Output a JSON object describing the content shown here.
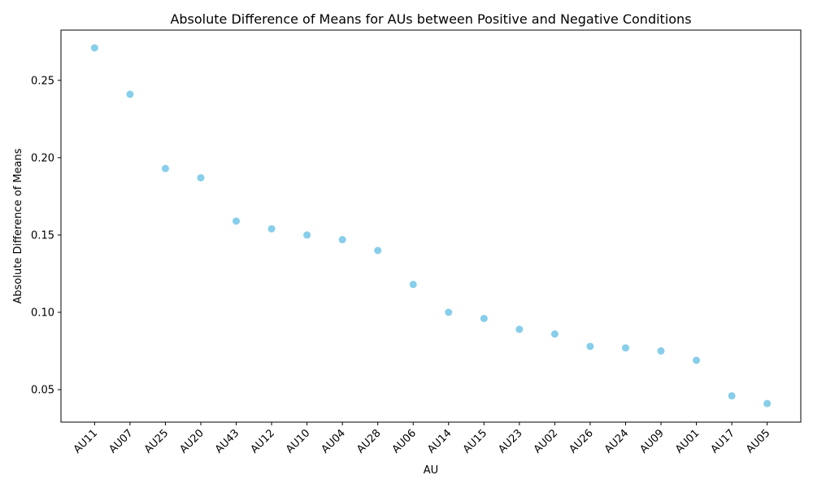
{
  "chart_data": {
    "type": "scatter",
    "title": "Absolute Difference of Means for AUs between Positive and Negative Conditions",
    "xlabel": "AU",
    "ylabel": "Absolute Difference of Means",
    "categories": [
      "AU11",
      "AU07",
      "AU25",
      "AU20",
      "AU43",
      "AU12",
      "AU10",
      "AU04",
      "AU28",
      "AU06",
      "AU14",
      "AU15",
      "AU23",
      "AU02",
      "AU26",
      "AU24",
      "AU09",
      "AU01",
      "AU17",
      "AU05"
    ],
    "values": [
      0.271,
      0.241,
      0.193,
      0.187,
      0.159,
      0.154,
      0.15,
      0.147,
      0.14,
      0.118,
      0.1,
      0.096,
      0.089,
      0.086,
      0.078,
      0.077,
      0.075,
      0.069,
      0.046,
      0.041
    ],
    "ylim": [
      0.029,
      0.2825
    ],
    "yticks": [
      "0.05",
      "0.10",
      "0.15",
      "0.20",
      "0.25"
    ],
    "point_color": "#87ceeb",
    "grid": false,
    "legend": "none"
  }
}
